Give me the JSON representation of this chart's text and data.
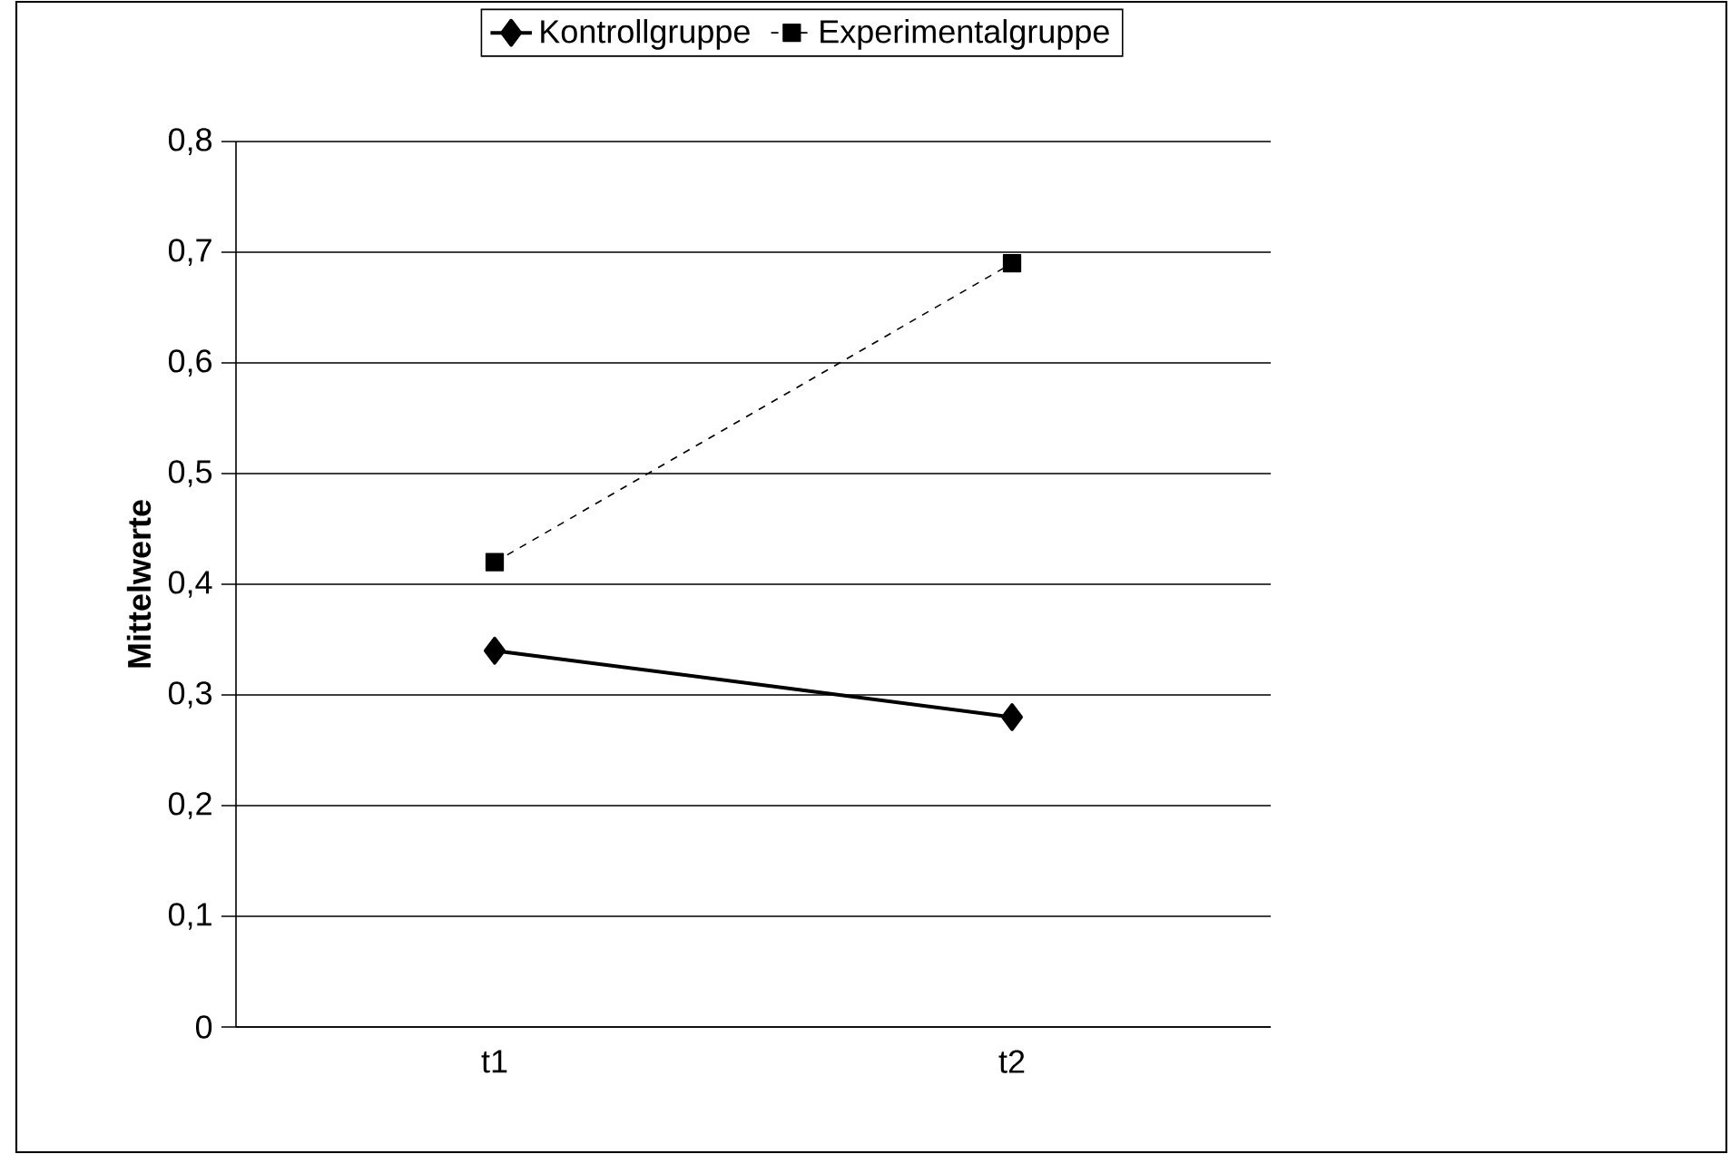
{
  "chart_data": {
    "type": "line",
    "ylabel": "Mittelwerte",
    "categories": [
      "t1",
      "t2"
    ],
    "series": [
      {
        "name": "Kontrollgruppe",
        "color": "#000000",
        "marker": "diamond",
        "line_style": "solid",
        "values": [
          0.34,
          0.28
        ]
      },
      {
        "name": "Experimentalgruppe",
        "color": "#000000",
        "marker": "square",
        "line_style": "dashed",
        "values": [
          0.42,
          0.69
        ]
      }
    ],
    "ylim": [
      0,
      0.8
    ],
    "yticks": [
      0,
      {
        "value": 0.1,
        "label": "0,1"
      },
      {
        "value": 0.2,
        "label": "0,2"
      },
      {
        "value": 0.3,
        "label": "0,3"
      },
      {
        "value": 0.4,
        "label": "0,4"
      },
      {
        "value": 0.5,
        "label": "0,5"
      },
      {
        "value": 0.6,
        "label": "0,6"
      },
      {
        "value": 0.7,
        "label": "0,7"
      },
      {
        "value": 0.8,
        "label": "0,8"
      }
    ],
    "grid": "y",
    "legend": "top"
  }
}
